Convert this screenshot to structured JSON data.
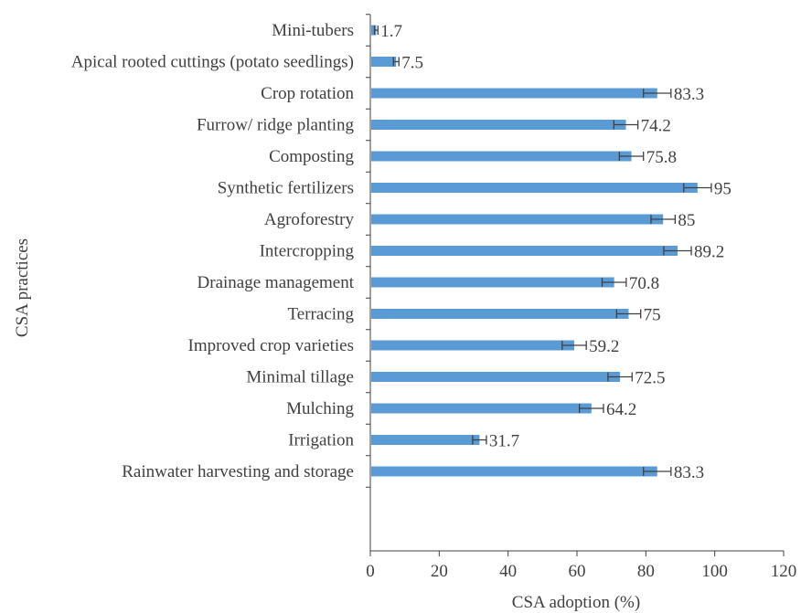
{
  "chart_data": {
    "type": "bar",
    "orientation": "horizontal",
    "categories": [
      "Mini-tubers",
      "Apical rooted cuttings (potato seedlings)",
      "Crop rotation",
      "Furrow/ ridge planting",
      "Composting",
      "Synthetic fertilizers",
      "Agroforestry",
      "Intercropping",
      "Drainage management",
      "Terracing",
      "Improved crop varieties",
      "Minimal tillage",
      "Mulching",
      "Irrigation",
      "Rainwater harvesting and storage"
    ],
    "values": [
      1.7,
      7.5,
      83.3,
      74.2,
      75.8,
      95,
      85,
      89.2,
      70.8,
      75,
      59.2,
      72.5,
      64.2,
      31.7,
      83.3
    ],
    "value_labels": [
      "1.7",
      "7.5",
      "83.3",
      "74.2",
      "75.8",
      "95",
      "85",
      "89.2",
      "70.8",
      "75",
      "59.2",
      "72.5",
      "64.2",
      "31.7",
      "83.3"
    ],
    "error": [
      0.5,
      0.8,
      4,
      3.5,
      3.5,
      4,
      3.5,
      4,
      3.5,
      3.5,
      3.5,
      3.5,
      3.5,
      2,
      4
    ],
    "xlabel": "CSA adoption (%)",
    "ylabel": "CSA practices",
    "xlim": [
      0,
      120
    ],
    "xticks": [
      "0",
      "20",
      "40",
      "60",
      "80",
      "100",
      "120"
    ],
    "grid": false,
    "bar_color": "#5b9bd5",
    "error_bar_color": "#404040"
  }
}
